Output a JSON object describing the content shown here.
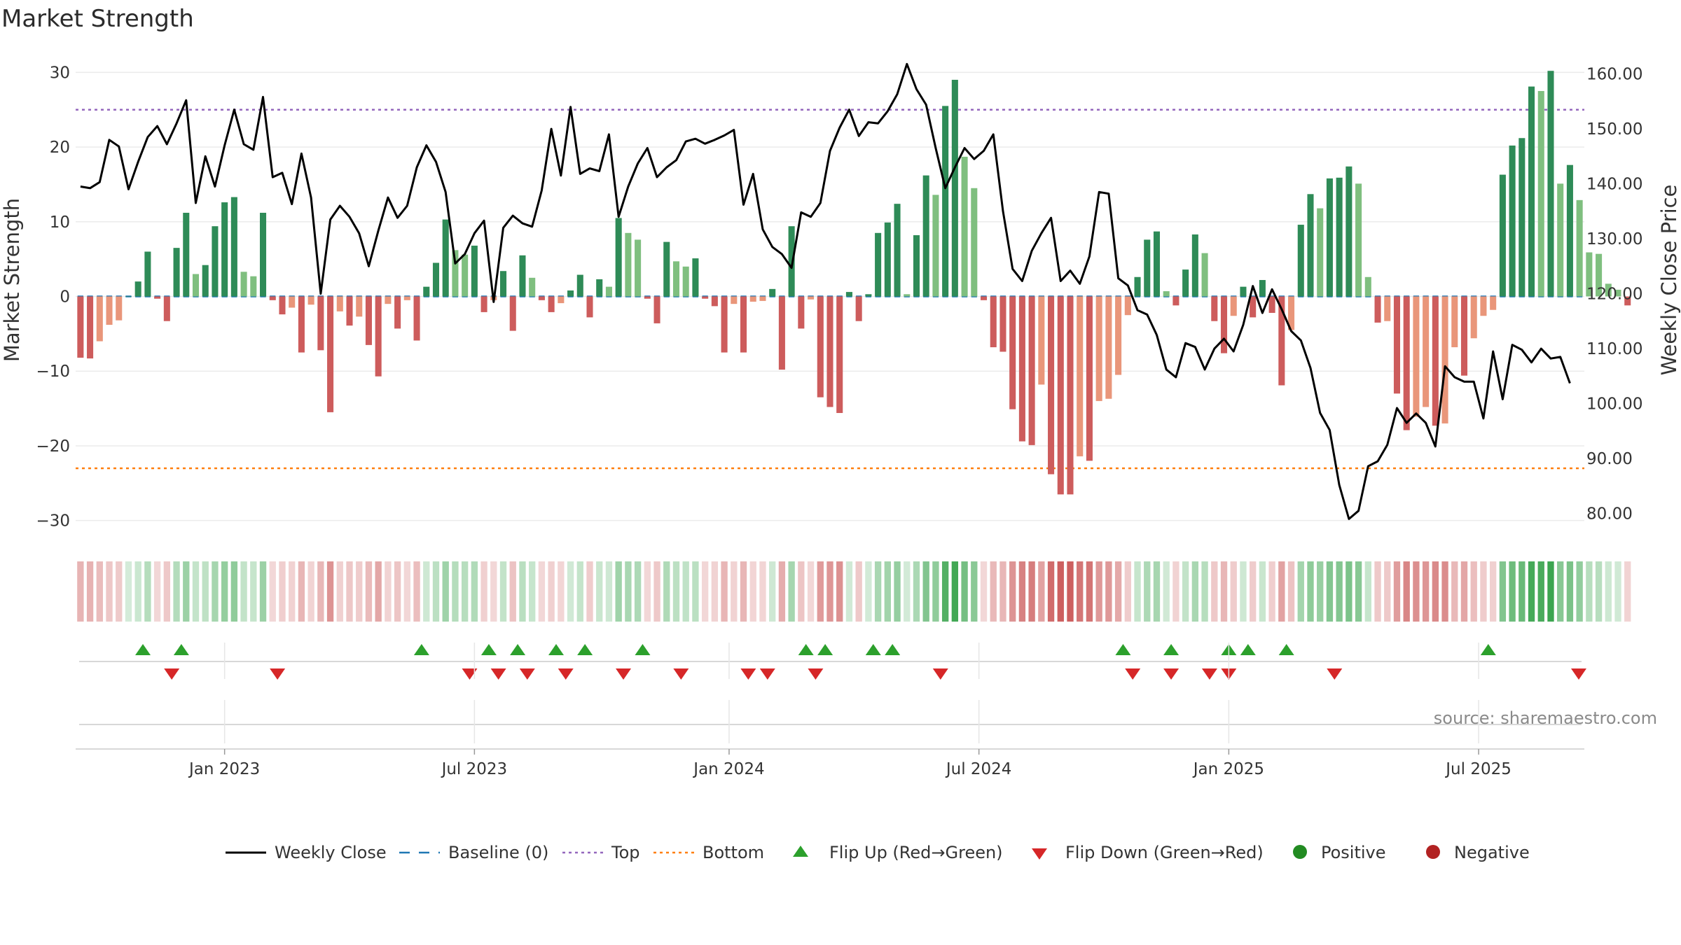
{
  "chart_data": {
    "type": "bar",
    "title": "Market Strength",
    "ylabel": "Market Strength",
    "y2label": "Weekly Close Price",
    "ylim": [
      -32,
      32
    ],
    "y2lim": [
      76,
      163
    ],
    "yticks": [
      30,
      20,
      10,
      0,
      -10,
      -20,
      -30
    ],
    "ytick_labels": [
      "30",
      "20",
      "10",
      "0",
      "−10",
      "−20",
      "−30"
    ],
    "y2ticks": [
      160,
      150,
      140,
      130,
      120,
      110,
      100,
      90,
      80
    ],
    "y2tick_labels": [
      "160.00",
      "150.00",
      "140.00",
      "130.00",
      "120.00",
      "110.00",
      "100.00",
      "90.00",
      "80.00"
    ],
    "xtick_labels": [
      "Jan 2023",
      "Jul 2023",
      "Jan 2024",
      "Jul 2024",
      "Jan 2025",
      "Jul 2025"
    ],
    "xtick_weeks": [
      15,
      41,
      67.5,
      93.5,
      119.5,
      145.5
    ],
    "top_line": 25,
    "bottom_line": -23,
    "baseline": 0,
    "week_count": 157,
    "strength": [
      -8.2,
      -8.3,
      -6,
      -3.8,
      -3.2,
      0,
      2,
      6,
      -0.3,
      -3.3,
      6.5,
      11.2,
      3,
      4.2,
      9.4,
      12.6,
      13.3,
      3.3,
      2.7,
      11.2,
      -0.5,
      -2.4,
      -1.5,
      -7.5,
      -1.1,
      -7.2,
      -15.5,
      -2,
      -3.9,
      -2.7,
      -6.5,
      -10.7,
      -1,
      -4.3,
      -0.5,
      -5.9,
      1.3,
      4.5,
      10.3,
      6.2,
      5.6,
      6.8,
      -2.1,
      -0.5,
      3.4,
      -4.6,
      5.5,
      2.5,
      -0.5,
      -2.1,
      -0.9,
      0.8,
      2.9,
      -2.8,
      2.3,
      1.3,
      10.5,
      8.5,
      7.6,
      -0.3,
      -3.6,
      7.3,
      4.7,
      4,
      5.1,
      -0.3,
      -1.3,
      -7.5,
      -1,
      -7.5,
      -0.7,
      -0.6,
      1,
      -9.8,
      9.4,
      -4.3,
      -0.4,
      -13.5,
      -14.8,
      -15.6,
      0.6,
      -3.3,
      0.3,
      8.5,
      9.9,
      12.4,
      0.3,
      8.2,
      16.2,
      13.6,
      25.5,
      29,
      18.7,
      14.5,
      -0.5,
      -6.8,
      -7.4,
      -15.1,
      -19.4,
      -19.9,
      -11.8,
      -23.8,
      -26.5,
      -26.5,
      -21.4,
      -22,
      -14,
      -13.7,
      -10.5,
      -2.5,
      2.6,
      7.6,
      8.7,
      0.7,
      -1.2,
      3.6,
      8.3,
      5.8,
      -3.3,
      -7.6,
      -2.6,
      1.3,
      -2.8,
      2.2,
      -2.2,
      -11.9,
      -4.5,
      9.6,
      13.7,
      11.8,
      15.8,
      15.9,
      17.4,
      15.1,
      2.6,
      -3.5,
      -3.3,
      -13,
      -17.9,
      -16.1,
      -14.8,
      -17.3,
      -17,
      -6.8,
      -10.6,
      -5.6,
      -2.6,
      -1.8,
      16.3,
      20.2,
      21.2,
      28.1,
      27.5,
      30.2,
      15.1,
      17.6,
      12.9,
      5.9,
      5.7,
      1.7,
      0.9,
      -1.2
    ],
    "weekly_close": [
      139.5,
      139.2,
      140.3,
      148,
      146.8,
      139,
      144,
      148.5,
      150.5,
      147.2,
      151,
      155.2,
      136.5,
      145,
      139.5,
      147,
      153.5,
      147.2,
      146.2,
      155.8,
      141.2,
      142,
      136.3,
      145.5,
      137.5,
      120,
      133.5,
      136,
      134,
      131,
      125,
      131.5,
      137.5,
      133.8,
      136,
      143,
      147,
      144,
      138.5,
      125.5,
      127.2,
      131,
      133.3,
      118.5,
      132,
      134.2,
      132.8,
      132.2,
      138.8,
      150,
      141.5,
      154,
      141.8,
      142.8,
      142.3,
      149,
      134,
      139.5,
      143.7,
      146.5,
      141.2,
      143,
      144.3,
      147.7,
      148.2,
      147.3,
      148,
      148.8,
      149.8,
      136.2,
      141.8,
      131.7,
      128.5,
      127.2,
      124.7,
      134.8,
      134,
      136.5,
      146,
      150.2,
      153.5,
      148.7,
      151.2,
      151,
      153.2,
      156.3,
      161.8,
      157.2,
      154.4,
      146.5,
      139.2,
      143,
      146.5,
      144.5,
      146,
      149,
      135,
      124.5,
      122.3,
      127.8,
      131,
      133.8,
      122.3,
      124.2,
      121.8,
      126.8,
      138.5,
      138.2,
      122.8,
      121.5,
      117,
      116.2,
      112.5,
      106.2,
      104.8,
      111,
      110.3,
      106.2,
      110,
      111.8,
      109.5,
      114.3,
      121.4,
      116.5,
      120.8,
      117.2,
      113.2,
      111.5,
      106.5,
      98.3,
      95.2,
      85.2,
      79,
      80.5,
      88.6,
      89.5,
      92.5,
      99.2,
      96.5,
      98.2,
      96.5,
      92.2,
      106.8,
      104.8,
      104,
      104,
      97.3,
      109.5,
      100.8,
      110.7,
      109.8,
      107.5,
      110,
      108.2,
      108.5,
      103.7
    ],
    "flip_up_weeks": [
      6.5,
      10.5,
      35.5,
      42.5,
      45.5,
      49.5,
      52.5,
      58.5,
      75.5,
      77.5,
      82.5,
      84.5,
      108.5,
      113.5,
      119.5,
      121.5,
      125.5,
      146.5
    ],
    "flip_down_weeks": [
      9.5,
      20.5,
      40.5,
      43.5,
      46.5,
      50.5,
      56.5,
      62.5,
      69.5,
      71.5,
      76.5,
      89.5,
      109.5,
      113.5,
      117.5,
      119.5,
      130.5,
      156.5
    ],
    "colors": {
      "strong_green": "#2e8b57",
      "light_green": "#7fbf7f",
      "strong_red": "#cd5c5c",
      "light_red": "#e9967a",
      "close_line": "#000000",
      "baseline": "#1f77b4",
      "top": "#9467bd",
      "bottom": "#ff7f0e",
      "flip_up": "#2ca02c",
      "flip_down": "#d62728",
      "positive": "#228b22",
      "negative": "#b22222"
    },
    "legend": [
      {
        "label": "Weekly Close",
        "symbol": "line",
        "color": "#000000"
      },
      {
        "label": "Baseline (0)",
        "symbol": "dash",
        "color": "#1f77b4"
      },
      {
        "label": "Top",
        "symbol": "dot",
        "color": "#9467bd"
      },
      {
        "label": "Bottom",
        "symbol": "dot",
        "color": "#ff7f0e"
      },
      {
        "label": "Flip Up (Red→Green)",
        "symbol": "tri-up",
        "color": "#2ca02c"
      },
      {
        "label": "Flip Down (Green→Red)",
        "symbol": "tri-down",
        "color": "#d62728"
      },
      {
        "label": "Positive",
        "symbol": "circle",
        "color": "#228b22"
      },
      {
        "label": "Negative",
        "symbol": "circle",
        "color": "#b22222"
      }
    ],
    "source": "source: sharemaestro.com"
  }
}
